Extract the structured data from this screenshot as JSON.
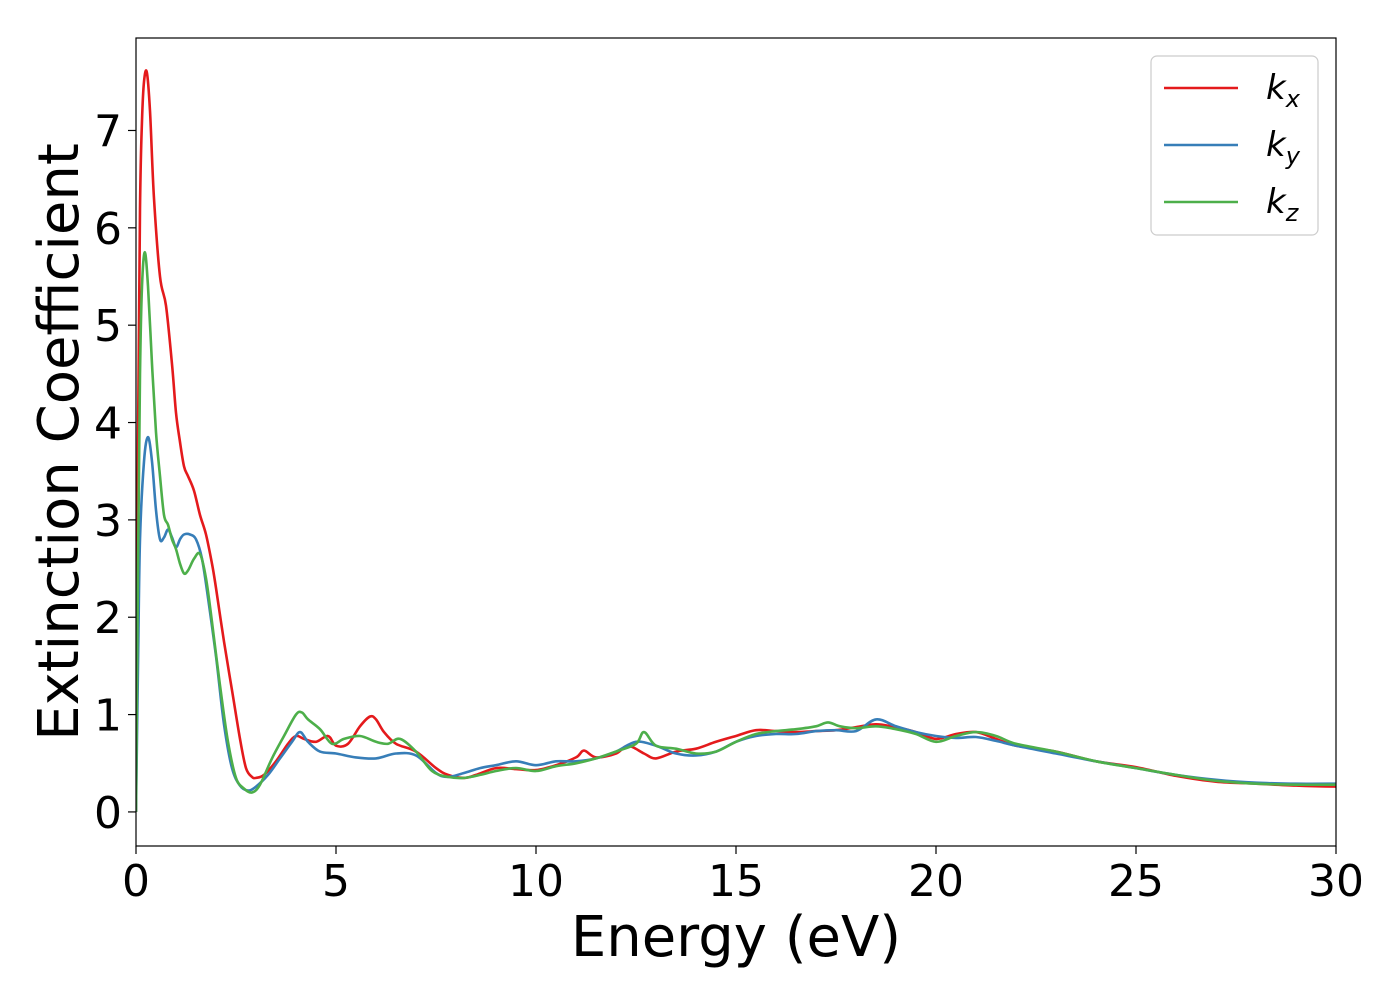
{
  "chart_data": {
    "type": "line",
    "title": "",
    "xlabel": "Energy (eV)",
    "ylabel": "Extinction Coefficient",
    "xlim": [
      0,
      30
    ],
    "ylim": [
      -0.35,
      7.95
    ],
    "xticks": [
      0,
      5,
      10,
      15,
      20,
      25,
      30
    ],
    "yticks": [
      0,
      1,
      2,
      3,
      4,
      5,
      6,
      7
    ],
    "grid": false,
    "legend_position": "top-right",
    "series": [
      {
        "name": "k",
        "sub": "x",
        "color": "#e41a1c",
        "x": [
          0,
          0.05,
          0.1,
          0.15,
          0.2,
          0.27,
          0.35,
          0.45,
          0.6,
          0.75,
          0.9,
          1.0,
          1.1,
          1.2,
          1.3,
          1.45,
          1.6,
          1.75,
          1.9,
          2.0,
          2.2,
          2.4,
          2.6,
          2.75,
          2.9,
          3.0,
          3.2,
          3.5,
          3.8,
          4.0,
          4.2,
          4.5,
          4.8,
          5.0,
          5.3,
          5.6,
          5.85,
          6.0,
          6.2,
          6.5,
          7.0,
          7.5,
          7.8,
          8.2,
          8.5,
          9.0,
          9.5,
          10.0,
          10.5,
          11.0,
          11.2,
          11.5,
          12.0,
          12.3,
          12.7,
          13.0,
          13.5,
          14.0,
          14.5,
          15.0,
          15.5,
          16.0,
          16.5,
          17.0,
          17.5,
          18.0,
          18.5,
          19.0,
          19.5,
          20.0,
          20.5,
          21.0,
          21.5,
          22.0,
          23.0,
          24.0,
          25.0,
          26.0,
          27.0,
          28.0,
          29.0,
          30.0
        ],
        "y": [
          0.0,
          3.8,
          6.2,
          7.1,
          7.5,
          7.6,
          7.2,
          6.3,
          5.5,
          5.2,
          4.6,
          4.1,
          3.8,
          3.55,
          3.45,
          3.3,
          3.05,
          2.85,
          2.55,
          2.3,
          1.75,
          1.25,
          0.75,
          0.45,
          0.36,
          0.35,
          0.38,
          0.52,
          0.7,
          0.78,
          0.75,
          0.72,
          0.78,
          0.68,
          0.7,
          0.88,
          0.98,
          0.95,
          0.82,
          0.7,
          0.62,
          0.45,
          0.38,
          0.35,
          0.38,
          0.45,
          0.44,
          0.43,
          0.48,
          0.56,
          0.63,
          0.56,
          0.6,
          0.68,
          0.6,
          0.55,
          0.62,
          0.65,
          0.72,
          0.78,
          0.84,
          0.83,
          0.82,
          0.83,
          0.84,
          0.87,
          0.9,
          0.87,
          0.82,
          0.75,
          0.8,
          0.82,
          0.75,
          0.68,
          0.62,
          0.52,
          0.46,
          0.37,
          0.31,
          0.29,
          0.27,
          0.26
        ]
      },
      {
        "name": "k",
        "sub": "y",
        "color": "#377eb8",
        "x": [
          0,
          0.05,
          0.1,
          0.2,
          0.3,
          0.4,
          0.5,
          0.6,
          0.7,
          0.8,
          0.9,
          1.0,
          1.1,
          1.2,
          1.35,
          1.5,
          1.65,
          1.8,
          2.0,
          2.2,
          2.4,
          2.6,
          2.8,
          3.0,
          3.3,
          3.6,
          3.9,
          4.1,
          4.3,
          4.6,
          5.0,
          5.5,
          6.0,
          6.5,
          7.0,
          7.5,
          7.8,
          8.2,
          8.6,
          9.0,
          9.5,
          10.0,
          10.5,
          11.0,
          11.5,
          12.0,
          12.5,
          13.0,
          13.5,
          14.0,
          14.5,
          15.0,
          15.5,
          16.0,
          16.5,
          17.0,
          17.5,
          18.0,
          18.5,
          19.0,
          19.5,
          20.0,
          20.5,
          21.0,
          21.5,
          22.0,
          23.0,
          24.0,
          25.0,
          26.0,
          27.0,
          28.0,
          29.0,
          30.0
        ],
        "y": [
          0.0,
          1.5,
          2.8,
          3.6,
          3.85,
          3.6,
          3.1,
          2.8,
          2.82,
          2.9,
          2.82,
          2.72,
          2.8,
          2.85,
          2.85,
          2.8,
          2.6,
          2.2,
          1.6,
          0.9,
          0.45,
          0.27,
          0.22,
          0.26,
          0.38,
          0.55,
          0.72,
          0.82,
          0.72,
          0.62,
          0.6,
          0.56,
          0.55,
          0.6,
          0.58,
          0.4,
          0.36,
          0.4,
          0.45,
          0.48,
          0.52,
          0.48,
          0.52,
          0.52,
          0.55,
          0.62,
          0.72,
          0.68,
          0.6,
          0.58,
          0.62,
          0.72,
          0.78,
          0.8,
          0.8,
          0.83,
          0.84,
          0.83,
          0.95,
          0.88,
          0.82,
          0.78,
          0.76,
          0.77,
          0.73,
          0.68,
          0.6,
          0.52,
          0.45,
          0.38,
          0.33,
          0.3,
          0.29,
          0.29
        ]
      },
      {
        "name": "k",
        "sub": "z",
        "color": "#4daf4a",
        "x": [
          0,
          0.05,
          0.1,
          0.15,
          0.22,
          0.3,
          0.4,
          0.5,
          0.6,
          0.7,
          0.8,
          0.9,
          1.0,
          1.1,
          1.2,
          1.3,
          1.45,
          1.6,
          1.75,
          1.9,
          2.1,
          2.3,
          2.5,
          2.7,
          2.9,
          3.1,
          3.4,
          3.7,
          4.0,
          4.15,
          4.3,
          4.6,
          4.9,
          5.2,
          5.6,
          6.0,
          6.3,
          6.6,
          7.0,
          7.4,
          7.8,
          8.2,
          8.6,
          9.0,
          9.5,
          10.0,
          10.5,
          11.0,
          11.5,
          12.0,
          12.5,
          12.7,
          13.0,
          13.5,
          14.0,
          14.5,
          15.0,
          15.5,
          16.0,
          16.5,
          17.0,
          17.3,
          17.6,
          18.0,
          18.5,
          19.0,
          19.5,
          20.0,
          20.5,
          21.0,
          21.5,
          22.0,
          23.0,
          24.0,
          25.0,
          26.0,
          27.0,
          28.0,
          29.0,
          30.0
        ],
        "y": [
          0.0,
          2.5,
          4.5,
          5.4,
          5.75,
          5.4,
          4.6,
          3.9,
          3.45,
          3.05,
          2.95,
          2.8,
          2.7,
          2.55,
          2.45,
          2.48,
          2.6,
          2.65,
          2.4,
          1.95,
          1.3,
          0.72,
          0.35,
          0.24,
          0.2,
          0.28,
          0.55,
          0.78,
          1.0,
          1.02,
          0.95,
          0.85,
          0.7,
          0.75,
          0.78,
          0.72,
          0.7,
          0.75,
          0.62,
          0.42,
          0.36,
          0.35,
          0.38,
          0.42,
          0.45,
          0.42,
          0.47,
          0.5,
          0.55,
          0.62,
          0.7,
          0.82,
          0.68,
          0.65,
          0.6,
          0.62,
          0.72,
          0.8,
          0.83,
          0.85,
          0.88,
          0.92,
          0.88,
          0.86,
          0.88,
          0.85,
          0.8,
          0.72,
          0.78,
          0.82,
          0.78,
          0.7,
          0.62,
          0.52,
          0.45,
          0.38,
          0.32,
          0.29,
          0.28,
          0.28
        ]
      }
    ]
  }
}
